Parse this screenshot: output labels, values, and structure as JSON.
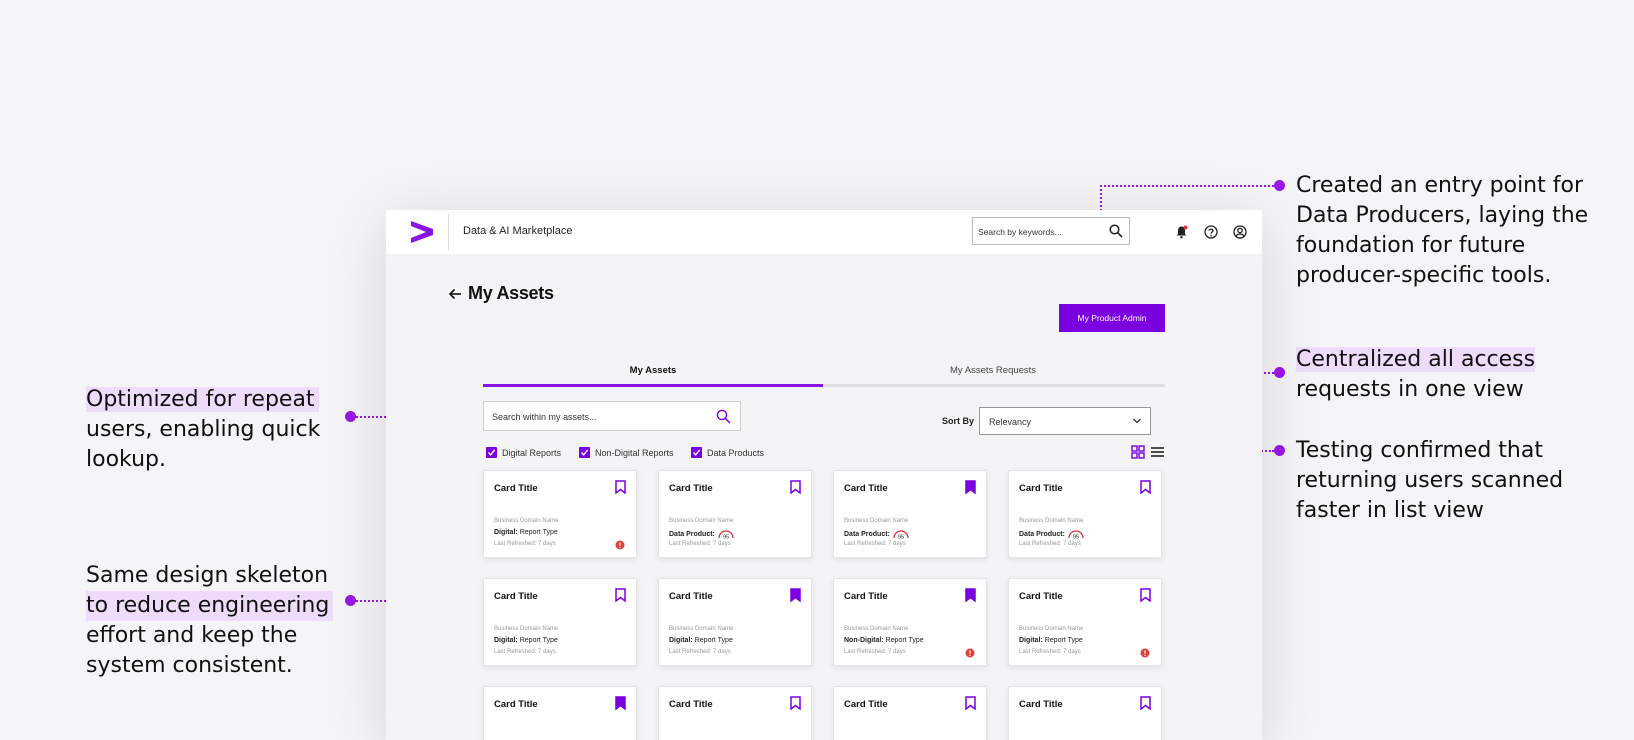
{
  "colors": {
    "accent": "#7a00e0",
    "annotation": "#9b18e8",
    "highlight": "#efdcfb"
  },
  "annotations": {
    "left_top": [
      "Optimized for repeat",
      "users, enabling quick",
      "lookup."
    ],
    "left_bottom": [
      "Same design skeleton",
      "to reduce engineering",
      "effort and keep the",
      "system consistent."
    ],
    "right_top": [
      "Created an entry point for",
      "Data Producers, laying the",
      "foundation for future",
      "producer-specific tools."
    ],
    "right_middle": [
      "Centralized all access",
      "requests in one view"
    ],
    "right_bottom": [
      "Testing confirmed that",
      "returning users scanned",
      "faster in list view"
    ]
  },
  "header": {
    "logo_icon": "accenture-chevron-icon",
    "app_name": "Data & AI Marketplace",
    "search_placeholder": "Search by keywords...",
    "icons": [
      "search-icon",
      "bell-icon",
      "help-icon",
      "account-icon"
    ]
  },
  "page": {
    "title": "My Assets",
    "admin_button": "My Product Admin",
    "tabs": [
      "My Assets",
      "My Assets Requests"
    ],
    "active_tab": "My Assets",
    "search_placeholder": "Search within my assets...",
    "sort_label": "Sort By",
    "sort_value": "Relevancy",
    "filters": [
      "Digital Reports",
      "Non-Digital Reports",
      "Data Products"
    ],
    "view_icons": [
      "grid-view-icon",
      "list-view-icon"
    ]
  },
  "cards": [
    {
      "title": "Card Title",
      "domain": "Business Domain Name",
      "type_label": "Digital:",
      "type_value": "Report Type",
      "refreshed": "Last Refreshed: 7 days",
      "bookmarked": false
    },
    {
      "title": "Card Title",
      "domain": "Business Domain Name",
      "type_label": "Data Product:",
      "type_value": "95",
      "refreshed": "Last Refreshed: 7 days",
      "bookmarked": false
    },
    {
      "title": "Card Title",
      "domain": "Business Domain Name",
      "type_label": "Data Product:",
      "type_value": "95",
      "refreshed": "Last Refreshed: 7 days",
      "bookmarked": true
    },
    {
      "title": "Card Title",
      "domain": "Business Domain Name",
      "type_label": "Data Product:",
      "type_value": "95",
      "refreshed": "Last Refreshed: 7 days",
      "bookmarked": false
    },
    {
      "title": "Card Title",
      "domain": "Business Domain Name",
      "type_label": "Digital:",
      "type_value": "Report Type",
      "refreshed": "Last Refreshed: 7 days",
      "bookmarked": false
    },
    {
      "title": "Card Title",
      "domain": "Business Domain Name",
      "type_label": "Digital:",
      "type_value": "Report Type",
      "refreshed": "Last Refreshed: 7 days",
      "bookmarked": true
    },
    {
      "title": "Card Title",
      "domain": "Business Domain Name",
      "type_label": "Non-Digital:",
      "type_value": "Report Type",
      "refreshed": "Last Refreshed: 7 days",
      "bookmarked": true
    },
    {
      "title": "Card Title",
      "domain": "Business Domain Name",
      "type_label": "Digital:",
      "type_value": "Report Type",
      "refreshed": "Last Refreshed: 7 days",
      "bookmarked": false
    },
    {
      "title": "Card Title",
      "bookmarked": true
    },
    {
      "title": "Card Title",
      "bookmarked": false
    },
    {
      "title": "Card Title",
      "bookmarked": false
    },
    {
      "title": "Card Title",
      "bookmarked": false
    }
  ]
}
